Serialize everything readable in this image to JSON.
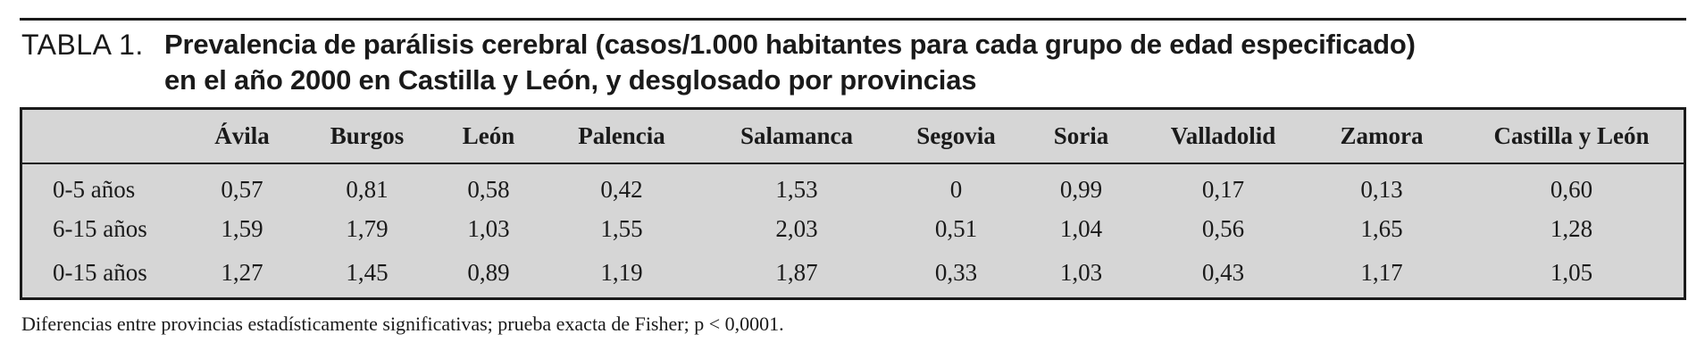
{
  "caption": {
    "label": "TABLA 1.",
    "title_line1": "Prevalencia de parálisis cerebral (casos/1.000 habitantes para cada grupo de edad especificado)",
    "title_line2": "en el año 2000 en Castilla y León, y desglosado por provincias"
  },
  "table": {
    "columns": [
      "",
      "Ávila",
      "Burgos",
      "León",
      "Palencia",
      "Salamanca",
      "Segovia",
      "Soria",
      "Valladolid",
      "Zamora",
      "Castilla y León"
    ],
    "rows": [
      [
        "0-5 años",
        "0,57",
        "0,81",
        "0,58",
        "0,42",
        "1,53",
        "0",
        "0,99",
        "0,17",
        "0,13",
        "0,60"
      ],
      [
        "6-15 años",
        "1,59",
        "1,79",
        "1,03",
        "1,55",
        "2,03",
        "0,51",
        "1,04",
        "0,56",
        "1,65",
        "1,28"
      ],
      [
        "0-15 años",
        "1,27",
        "1,45",
        "0,89",
        "1,19",
        "1,87",
        "0,33",
        "1,03",
        "0,43",
        "1,17",
        "1,05"
      ]
    ]
  },
  "footnote": "Diferencias entre provincias estadísticamente significativas; prueba exacta de Fisher; p < 0,0001."
}
